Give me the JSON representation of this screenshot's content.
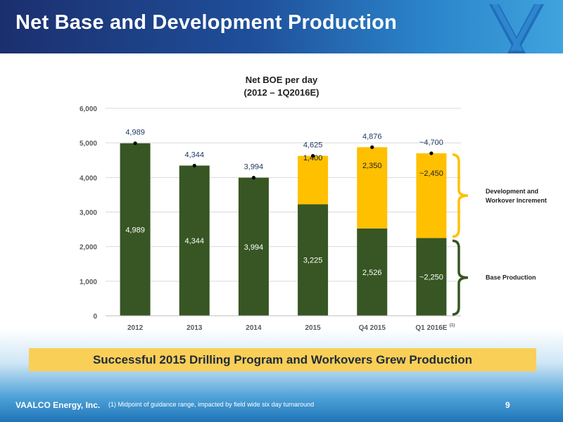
{
  "header": {
    "title": "Net Base and Development Production"
  },
  "colors": {
    "base": "#375623",
    "development": "#ffc000",
    "header_dark": "#1b2f6e",
    "callout_bg": "#f9cf57"
  },
  "chart_data": {
    "type": "bar",
    "title_line1": "Net BOE per day",
    "title_line2": "(2012 – 1Q2016E)",
    "categories": [
      "2012",
      "2013",
      "2014",
      "2015",
      "Q4 2015",
      "Q1 2016E"
    ],
    "category_footnote": {
      "index": 5,
      "marker": "(1)"
    },
    "series": [
      {
        "name": "Base Production",
        "color": "#375623",
        "values": [
          4989,
          4344,
          3994,
          3225,
          2526,
          2250
        ],
        "labels": [
          "4,989",
          "4,344",
          "3,994",
          "3,225",
          "2,526",
          "~2,250"
        ]
      },
      {
        "name": "Development and Workover Increment",
        "color": "#ffc000",
        "values": [
          0,
          0,
          0,
          1400,
          2350,
          2450
        ],
        "labels": [
          "",
          "",
          "",
          "1,400",
          "2,350",
          "~2,450"
        ]
      }
    ],
    "totals": [
      4989,
      4344,
      3994,
      4625,
      4876,
      4700
    ],
    "total_labels": [
      "4,989",
      "4,344",
      "3,994",
      "4,625",
      "4,876",
      "~4,700"
    ],
    "ylim": [
      0,
      6000
    ],
    "yticks": [
      0,
      1000,
      2000,
      3000,
      4000,
      5000,
      6000
    ],
    "ytick_labels": [
      "0",
      "1,000",
      "2,000",
      "3,000",
      "4,000",
      "5,000",
      "6,000"
    ],
    "grid": true,
    "legend": {
      "dev_line1": "Development and",
      "dev_line2": "Workover Increment",
      "base": "Base Production"
    }
  },
  "callout": "Successful 2015 Drilling Program and Workovers Grew Production",
  "footer": {
    "company": "VAALCO Energy, Inc.",
    "footnote": "(1)   Midpoint of guidance range, impacted by field wide six day turnaround",
    "page": "9"
  }
}
